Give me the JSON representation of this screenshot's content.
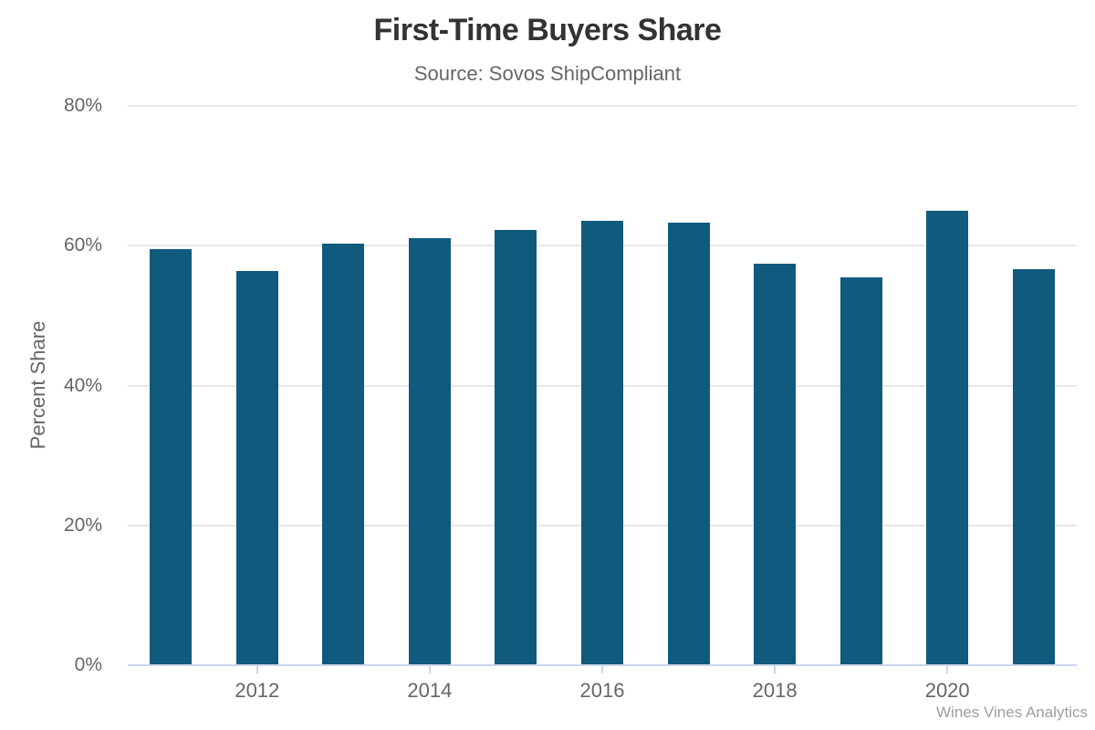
{
  "chart_data": {
    "type": "bar",
    "title": "First-Time Buyers Share",
    "subtitle": "Source: Sovos ShipCompliant",
    "ylabel": "Percent Share",
    "xlabel": "",
    "credit": "Wines Vines Analytics",
    "categories": [
      "2011",
      "2012",
      "2013",
      "2014",
      "2015",
      "2016",
      "2017",
      "2018",
      "2019",
      "2020",
      "2021"
    ],
    "values": [
      59.5,
      56.4,
      60.3,
      61.1,
      62.2,
      63.6,
      63.3,
      57.4,
      55.5,
      65.0,
      56.7
    ],
    "ylim": [
      0,
      80
    ],
    "ytick_values": [
      0,
      20,
      40,
      60,
      80
    ],
    "yticks": [
      "0%",
      "20%",
      "40%",
      "60%",
      "80%"
    ],
    "x_labeled_ticks": [
      "2012",
      "2014",
      "2016",
      "2018",
      "2020"
    ],
    "grid": "horizontal-only",
    "legend": "none",
    "colors": {
      "bar": "#105a7e",
      "grid": "#e7e7e7",
      "axis_line": "#ccd6eb",
      "title_text": "#333333",
      "axis_text": "#666666",
      "credit_text": "#9e9e9e"
    }
  }
}
